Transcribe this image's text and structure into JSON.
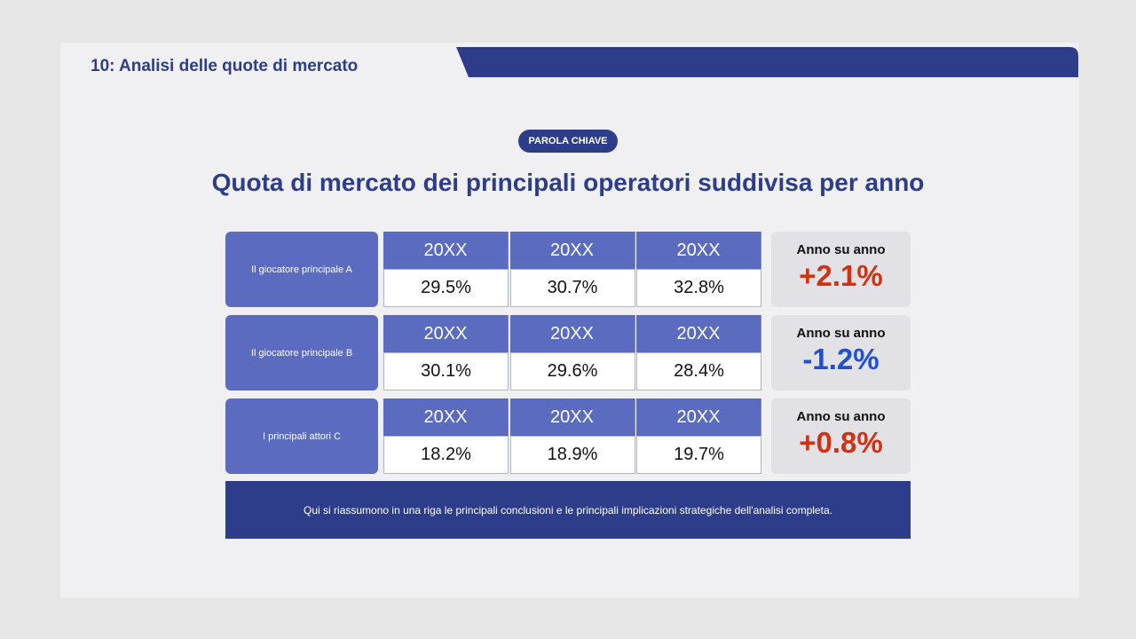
{
  "header": {
    "title": "10: Analisi delle quote di mercato"
  },
  "keyword": "PAROLA CHIAVE",
  "heading": "Quota di mercato dei principali operatori suddivisa per anno",
  "rows": [
    {
      "label": "Il giocatore principale A",
      "years": [
        "20XX",
        "20XX",
        "20XX"
      ],
      "values": [
        "29.5%",
        "30.7%",
        "32.8%"
      ],
      "yoy_label": "Anno su anno",
      "yoy": "+2.1%",
      "yoy_color": "#d23214"
    },
    {
      "label": "Il giocatore principale B",
      "years": [
        "20XX",
        "20XX",
        "20XX"
      ],
      "values": [
        "30.1%",
        "29.6%",
        "28.4%"
      ],
      "yoy_label": "Anno su anno",
      "yoy": "-1.2%",
      "yoy_color": "#1f4fd6"
    },
    {
      "label": "I principali attori C",
      "years": [
        "20XX",
        "20XX",
        "20XX"
      ],
      "values": [
        "18.2%",
        "18.9%",
        "19.7%"
      ],
      "yoy_label": "Anno su anno",
      "yoy": "+0.8%",
      "yoy_color": "#d23214"
    }
  ],
  "summary": "Qui si riassumono in una riga le principali conclusioni e le principali implicazioni strategiche dell'analisi completa."
}
